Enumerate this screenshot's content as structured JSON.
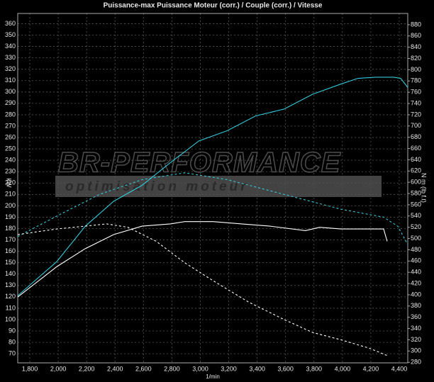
{
  "chart_data": {
    "type": "line",
    "title": "Puissance-max Puissance Moteur (corr.) / Couple (corr.) / Vitesse",
    "ylabel": "kW",
    "y2label": "N m (lb f.t)",
    "xlabel": "1/min",
    "watermark": {
      "title": "BR-PERFORMANCE",
      "subtitle": "optimisation moteur"
    },
    "xlim": [
      1715,
      4460
    ],
    "xticks": [
      {
        "value": 1800,
        "label": "1,800"
      },
      {
        "value": 2000,
        "label": "2,000"
      },
      {
        "value": 2200,
        "label": "2,200"
      },
      {
        "value": 2400,
        "label": "2,400"
      },
      {
        "value": 2600,
        "label": "2,600"
      },
      {
        "value": 2800,
        "label": "2,800"
      },
      {
        "value": 3000,
        "label": "3,000"
      },
      {
        "value": 3200,
        "label": "3,200"
      },
      {
        "value": 3400,
        "label": "3,400"
      },
      {
        "value": 3600,
        "label": "3,600"
      },
      {
        "value": 3800,
        "label": "3,800"
      },
      {
        "value": 4000,
        "label": "4,000"
      },
      {
        "value": 4200,
        "label": "4,200"
      },
      {
        "value": 4400,
        "label": "4,400"
      }
    ],
    "ylim": [
      62,
      369
    ],
    "yticks": [
      70,
      80,
      90,
      100,
      110,
      120,
      130,
      140,
      150,
      160,
      170,
      180,
      190,
      200,
      210,
      220,
      230,
      240,
      250,
      260,
      270,
      280,
      290,
      300,
      310,
      320,
      330,
      340,
      350,
      360
    ],
    "y2lim": [
      279,
      900
    ],
    "y2ticks": [
      280,
      300,
      320,
      340,
      360,
      380,
      400,
      420,
      440,
      460,
      480,
      500,
      520,
      540,
      560,
      580,
      600,
      620,
      640,
      660,
      680,
      700,
      720,
      740,
      760,
      780,
      800,
      820,
      840,
      860,
      880
    ],
    "grid": true,
    "series": [
      {
        "name": "Puissance Moteur (corr.)",
        "color": "#33c8d8",
        "dash": false,
        "axis": "y",
        "x": [
          1715,
          1990,
          2190,
          2390,
          2590,
          2790,
          2990,
          3190,
          3390,
          3590,
          3790,
          3990,
          4110,
          4235,
          4360,
          4410,
          4460
        ],
        "values": [
          121,
          151,
          182,
          204,
          218,
          238,
          257,
          266,
          279,
          285,
          298,
          307,
          312,
          313,
          313,
          312,
          304
        ]
      },
      {
        "name": "Puissance-max",
        "color": "#33c8d8",
        "dash": true,
        "axis": "y",
        "x": [
          1715,
          1990,
          2290,
          2590,
          2890,
          3190,
          3590,
          3990,
          4290,
          4390,
          4460
        ],
        "values": [
          173,
          191,
          210,
          223,
          229,
          223,
          210,
          197,
          190,
          182,
          166
        ]
      },
      {
        "name": "Couple (corr.)",
        "color": "#ffffff",
        "dash": false,
        "axis": "y2",
        "x": [
          1715,
          1990,
          2190,
          2390,
          2590,
          2790,
          2890,
          3090,
          3290,
          3490,
          3740,
          3840,
          3990,
          4290,
          4315
        ],
        "values": [
          396,
          450,
          482,
          507,
          522,
          526,
          530,
          530,
          526,
          522,
          514,
          520,
          517,
          517,
          495
        ]
      },
      {
        "name": "Vitesse",
        "color": "#ffffff",
        "dash": true,
        "axis": "y2",
        "x": [
          1715,
          1990,
          2190,
          2340,
          2490,
          2690,
          2890,
          3090,
          3340,
          3590,
          3790,
          3990,
          4190,
          4315
        ],
        "values": [
          507,
          517,
          522,
          526,
          520,
          495,
          457,
          425,
          387,
          356,
          333,
          320,
          305,
          292
        ]
      }
    ]
  }
}
